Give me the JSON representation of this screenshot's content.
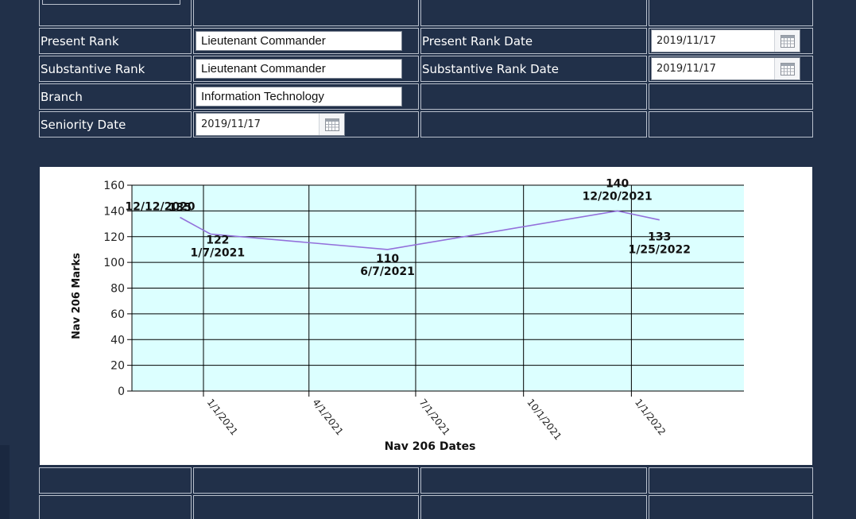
{
  "form": {
    "present_rank_label": "Present Rank",
    "present_rank_value": "Lieutenant Commander",
    "present_rank_date_label": "Present Rank Date",
    "present_rank_date_value": "2019/11/17",
    "substantive_rank_label": "Substantive Rank",
    "substantive_rank_value": "Lieutenant Commander",
    "substantive_rank_date_label": "Substantive Rank Date",
    "substantive_rank_date_value": "2019/11/17",
    "branch_label": "Branch",
    "branch_value": "Information Technology",
    "seniority_date_label": "Seniority Date",
    "seniority_date_value": "2019/11/17"
  },
  "icons": {
    "calendar": "calendar-icon"
  },
  "colors": {
    "page_background": "#213049",
    "plot_background": "#dcffff",
    "series_line": "#9370db",
    "grid": "#000000"
  },
  "chart_data": {
    "type": "line",
    "xlabel": "Nav 206 Dates",
    "ylabel": "Nav 206 Marks",
    "x_axis": "date",
    "xlim": [
      "2020-11-01",
      "2022-04-07"
    ],
    "ylim": [
      0,
      160
    ],
    "y_ticks": [
      0,
      20,
      40,
      60,
      80,
      100,
      120,
      140,
      160
    ],
    "x_ticks": [
      {
        "date": "2021-01-01",
        "label": "1/1/2021"
      },
      {
        "date": "2021-04-01",
        "label": "4/1/2021"
      },
      {
        "date": "2021-07-01",
        "label": "7/1/2021"
      },
      {
        "date": "2021-10-01",
        "label": "10/1/2021"
      },
      {
        "date": "2022-01-01",
        "label": "1/1/2022"
      }
    ],
    "grid": true,
    "series": [
      {
        "points": [
          {
            "x": "2020-12-12",
            "y": 135,
            "value_label": "135",
            "date_label": "12/12/2020"
          },
          {
            "x": "2021-01-07",
            "y": 122,
            "value_label": "122",
            "date_label": "1/7/2021"
          },
          {
            "x": "2021-06-07",
            "y": 110,
            "value_label": "110",
            "date_label": "6/7/2021"
          },
          {
            "x": "2021-12-20",
            "y": 140,
            "value_label": "140",
            "date_label": "12/20/2021"
          },
          {
            "x": "2022-01-25",
            "y": 133,
            "value_label": "133",
            "date_label": "1/25/2022"
          }
        ]
      }
    ]
  }
}
